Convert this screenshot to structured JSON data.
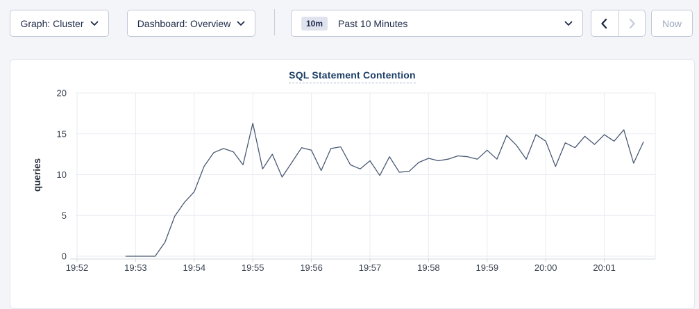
{
  "toolbar": {
    "graph_dropdown": {
      "label": "Graph: Cluster",
      "icon": "chevron-down-icon"
    },
    "dashboard_dropdown": {
      "label": "Dashboard: Overview",
      "icon": "chevron-down-icon"
    },
    "time_picker": {
      "badge": "10m",
      "label": "Past 10 Minutes",
      "icon": "chevron-down-icon"
    },
    "history": {
      "prev_icon": "chevron-left-icon",
      "next_icon": "chevron-right-icon",
      "next_disabled": true
    },
    "now_button": {
      "label": "Now",
      "disabled": true
    }
  },
  "chart": {
    "title": "SQL Statement Contention"
  },
  "chart_data": {
    "type": "line",
    "title": "SQL Statement Contention",
    "xlabel": "",
    "ylabel": "queries",
    "ylim": [
      0,
      20
    ],
    "yticks": [
      0,
      5,
      10,
      15,
      20
    ],
    "xticks": [
      "19:52",
      "19:53",
      "19:54",
      "19:55",
      "19:56",
      "19:57",
      "19:58",
      "19:59",
      "20:00",
      "20:01"
    ],
    "grid": true,
    "legend": false,
    "series": [
      {
        "name": "queries",
        "x": [
          "19:52:50",
          "19:53:00",
          "19:53:10",
          "19:53:20",
          "19:53:30",
          "19:53:40",
          "19:53:50",
          "19:54:00",
          "19:54:10",
          "19:54:20",
          "19:54:30",
          "19:54:40",
          "19:54:50",
          "19:55:00",
          "19:55:10",
          "19:55:20",
          "19:55:30",
          "19:55:40",
          "19:55:50",
          "19:56:00",
          "19:56:10",
          "19:56:20",
          "19:56:30",
          "19:56:40",
          "19:56:50",
          "19:57:00",
          "19:57:10",
          "19:57:20",
          "19:57:30",
          "19:57:40",
          "19:57:50",
          "19:58:00",
          "19:58:10",
          "19:58:20",
          "19:58:30",
          "19:58:40",
          "19:58:50",
          "19:59:00",
          "19:59:10",
          "19:59:20",
          "19:59:30",
          "19:59:40",
          "19:59:50",
          "20:00:00",
          "20:00:10",
          "20:00:20",
          "20:00:30",
          "20:00:40",
          "20:00:50",
          "20:01:00",
          "20:01:10",
          "20:01:20",
          "20:01:30",
          "20:01:40"
        ],
        "values": [
          0,
          0,
          0,
          0,
          1.7,
          4.9,
          6.6,
          7.9,
          11.0,
          12.7,
          13.2,
          12.8,
          11.2,
          16.3,
          10.7,
          12.5,
          9.7,
          11.5,
          13.3,
          13.0,
          10.5,
          13.2,
          13.4,
          11.2,
          10.7,
          11.7,
          9.9,
          12.2,
          10.3,
          10.4,
          11.5,
          12.0,
          11.7,
          11.9,
          12.3,
          12.2,
          11.9,
          13.0,
          11.9,
          14.8,
          13.6,
          11.9,
          14.9,
          14.1,
          11.0,
          13.9,
          13.3,
          14.7,
          13.7,
          14.9,
          14.1,
          15.5,
          11.4,
          14.0
        ]
      }
    ]
  },
  "colors": {
    "page_bg": "#f4f5f9",
    "card_bg": "#ffffff",
    "accent_navy": "#1d2a48",
    "title_navy": "#1c3e66",
    "line": "#475872",
    "grid": "#e9ebf1",
    "axis": "#d3d7e0",
    "tick_text": "#36404e",
    "disabled": "#9fa9bc"
  }
}
